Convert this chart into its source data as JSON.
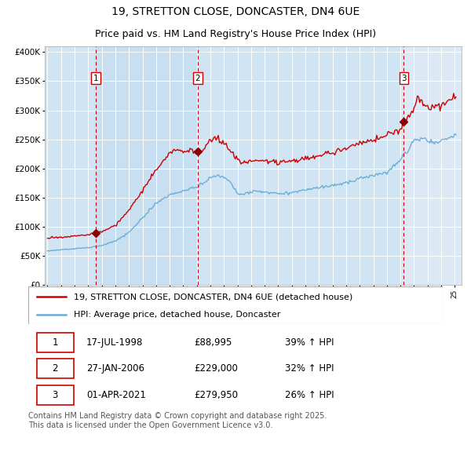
{
  "title": "19, STRETTON CLOSE, DONCASTER, DN4 6UE",
  "subtitle": "Price paid vs. HM Land Registry's House Price Index (HPI)",
  "legend_red": "19, STRETTON CLOSE, DONCASTER, DN4 6UE (detached house)",
  "legend_blue": "HPI: Average price, detached house, Doncaster",
  "footnote": "Contains HM Land Registry data © Crown copyright and database right 2025.\nThis data is licensed under the Open Government Licence v3.0.",
  "transactions": [
    {
      "num": 1,
      "date": "17-JUL-1998",
      "price": 88995,
      "hpi_pct": "39% ↑ HPI"
    },
    {
      "num": 2,
      "date": "27-JAN-2006",
      "price": 229000,
      "hpi_pct": "32% ↑ HPI"
    },
    {
      "num": 3,
      "date": "01-APR-2021",
      "price": 279950,
      "hpi_pct": "26% ↑ HPI"
    }
  ],
  "transaction_dates_decimal": [
    1998.54,
    2006.07,
    2021.25
  ],
  "ylim": [
    0,
    410000
  ],
  "xlim_start": 1994.8,
  "xlim_end": 2025.5,
  "background_color": "#dce9f5",
  "grid_color": "#ffffff",
  "red_line_color": "#cc0000",
  "blue_line_color": "#6baed6",
  "dashed_line_color": "#cc0000",
  "marker_color": "#8b0000",
  "title_fontsize": 10,
  "subtitle_fontsize": 9,
  "tick_fontsize": 7.5,
  "legend_fontsize": 8,
  "table_fontsize": 8.5
}
